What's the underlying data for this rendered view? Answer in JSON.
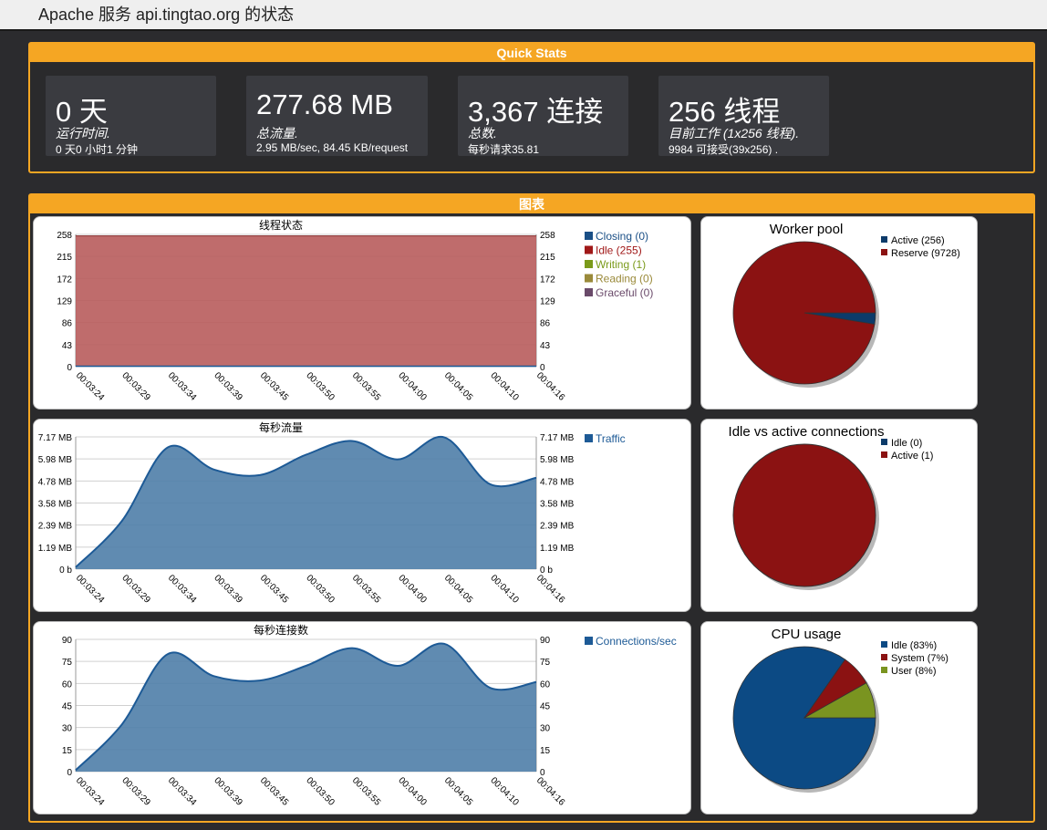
{
  "title": "Apache 服务 api.tingtao.org 的状态",
  "quick_stats": {
    "header": "Quick Stats",
    "cards": [
      {
        "big": "0 天",
        "label": "运行时间.",
        "sub": "0 天0 小时1 分钟"
      },
      {
        "big": "277.68 MB",
        "label": "总流量.",
        "sub": "2.95 MB/sec, 84.45 KB/request"
      },
      {
        "big": "3,367 连接",
        "label": "总数.",
        "sub": "每秒请求35.81"
      },
      {
        "big": "256 线程",
        "label": "目前工作 (1x256 线程).",
        "sub": "9984 可接受(39x256) ."
      }
    ]
  },
  "charts_header": "图表",
  "x_ticks": [
    "00:03:24",
    "00:03:29",
    "00:03:34",
    "00:03:39",
    "00:03:45",
    "00:03:50",
    "00:03:55",
    "00:04:00",
    "00:04:05",
    "00:04:10",
    "00:04:16"
  ],
  "colors": {
    "accent": "#f5a623",
    "area_blue": "#4f7ea8",
    "line_blue": "#1d5a96",
    "thread_area": "#b85c5c",
    "pie_red": "#8b1212",
    "pie_blue": "#0c4a84",
    "pie_olive": "#7a9420"
  },
  "chart_data": [
    {
      "type": "area",
      "title": "线程状态",
      "x": [
        "00:03:24",
        "00:03:29",
        "00:03:34",
        "00:03:39",
        "00:03:45",
        "00:03:50",
        "00:03:55",
        "00:04:00",
        "00:04:05",
        "00:04:10",
        "00:04:16"
      ],
      "ylim": [
        0,
        258
      ],
      "y_ticks": [
        "258",
        "215",
        "172",
        "129",
        "86",
        "43",
        "0"
      ],
      "series": [
        {
          "name": "Closing (0)",
          "color": "#1a4f86",
          "values": [
            0,
            0,
            0,
            0,
            0,
            0,
            0,
            0,
            0,
            0,
            0
          ]
        },
        {
          "name": "Idle (255)",
          "color": "#a01818",
          "values": [
            255,
            255,
            255,
            255,
            255,
            255,
            255,
            255,
            255,
            255,
            255
          ]
        },
        {
          "name": "Writing (1)",
          "color": "#7a9a1a",
          "values": [
            1,
            1,
            1,
            1,
            1,
            1,
            1,
            1,
            1,
            1,
            1
          ]
        },
        {
          "name": "Reading (0)",
          "color": "#9a8a3a",
          "values": [
            0,
            0,
            0,
            0,
            0,
            0,
            0,
            0,
            0,
            0,
            0
          ]
        },
        {
          "name": "Graceful (0)",
          "color": "#6a4a6a",
          "values": [
            0,
            0,
            0,
            0,
            0,
            0,
            0,
            0,
            0,
            0,
            0
          ]
        }
      ]
    },
    {
      "type": "area",
      "title": "每秒流量",
      "x": [
        "00:03:24",
        "00:03:29",
        "00:03:34",
        "00:03:39",
        "00:03:45",
        "00:03:50",
        "00:03:55",
        "00:04:00",
        "00:04:05",
        "00:04:10",
        "00:04:16"
      ],
      "ylim": [
        0,
        7.17
      ],
      "y_unit": "MB",
      "y_ticks": [
        "7.17 MB",
        "5.98 MB",
        "4.78 MB",
        "3.58 MB",
        "2.39 MB",
        "1.19 MB",
        "0 b"
      ],
      "series": [
        {
          "name": "Traffic",
          "color": "#1d5a96",
          "values": [
            0.1,
            2.6,
            6.6,
            5.4,
            5.1,
            6.2,
            6.95,
            5.95,
            7.15,
            4.6,
            4.95
          ]
        }
      ]
    },
    {
      "type": "area",
      "title": "每秒连接数",
      "x": [
        "00:03:24",
        "00:03:29",
        "00:03:34",
        "00:03:39",
        "00:03:45",
        "00:03:50",
        "00:03:55",
        "00:04:00",
        "00:04:05",
        "00:04:10",
        "00:04:16"
      ],
      "ylim": [
        0,
        90
      ],
      "y_ticks": [
        "90",
        "75",
        "60",
        "45",
        "30",
        "15",
        "0"
      ],
      "series": [
        {
          "name": "Connections/sec",
          "color": "#1d5a96",
          "values": [
            1,
            32,
            80,
            65,
            62,
            72,
            84,
            72,
            87,
            57,
            61
          ]
        }
      ]
    },
    {
      "type": "pie",
      "title": "Worker pool",
      "slices": [
        {
          "label": "Active (256)",
          "value": 256,
          "color": "#0c3b6a"
        },
        {
          "label": "Reserve (9728)",
          "value": 9728,
          "color": "#8b1212"
        }
      ]
    },
    {
      "type": "pie",
      "title": "Idle vs active connections",
      "slices": [
        {
          "label": "Idle (0)",
          "value": 0,
          "color": "#0c3b6a"
        },
        {
          "label": "Active (1)",
          "value": 1,
          "color": "#8b1212"
        }
      ]
    },
    {
      "type": "pie",
      "title": "CPU usage",
      "slices": [
        {
          "label": "Idle (83%)",
          "value": 83,
          "color": "#0c4a84"
        },
        {
          "label": "System (7%)",
          "value": 7,
          "color": "#8b1212"
        },
        {
          "label": "User (8%)",
          "value": 8,
          "color": "#7a9420"
        }
      ]
    }
  ]
}
